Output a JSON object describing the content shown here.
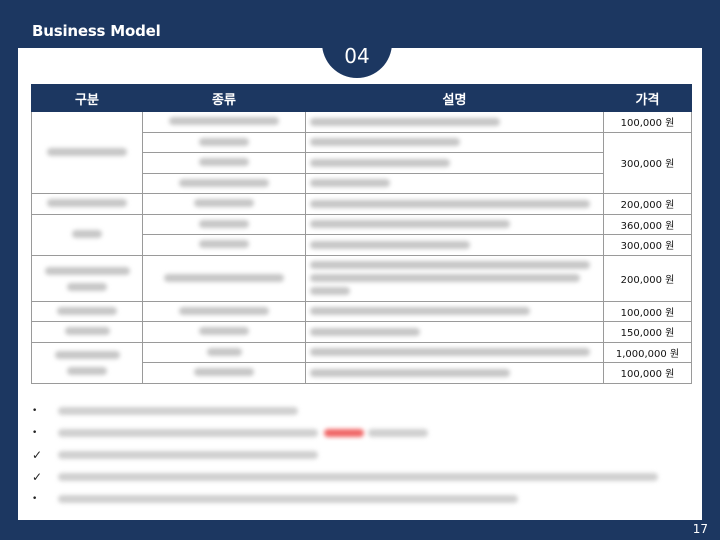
{
  "page": {
    "title": "Business Model",
    "section_number": "04",
    "page_number": "17"
  },
  "table": {
    "headers": [
      "구분",
      "종류",
      "설명",
      "가격"
    ],
    "prices": [
      "100,000 원",
      "300,000 원",
      "200,000 원",
      "360,000 원",
      "300,000 원",
      "200,000 원",
      "100,000 원",
      "150,000 원",
      "1,000,000 원",
      "100,000 원"
    ]
  },
  "bullets": {
    "markers": [
      "•",
      "•",
      "✓",
      "✓",
      "•"
    ]
  }
}
